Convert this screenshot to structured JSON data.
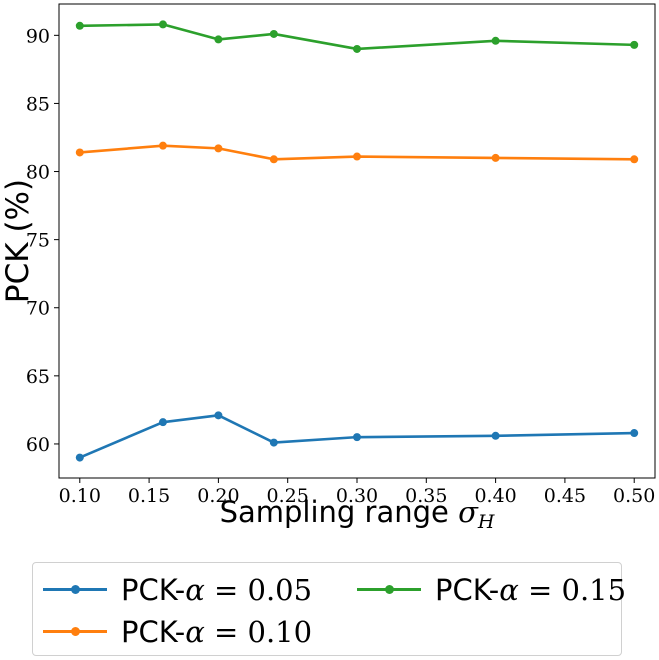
{
  "chart_data": {
    "type": "line",
    "xlabel": "Sampling range",
    "xlabel_symbol": "σ",
    "xlabel_subscript": "H",
    "ylabel": "PCK (%)",
    "xlim": [
      0.085,
      0.515
    ],
    "ylim": [
      57.5,
      92.3
    ],
    "xticks": [
      "0.10",
      "0.15",
      "0.20",
      "0.25",
      "0.30",
      "0.35",
      "0.40",
      "0.45",
      "0.50"
    ],
    "yticks": [
      "60",
      "65",
      "70",
      "75",
      "80",
      "85",
      "90"
    ],
    "x": [
      0.1,
      0.16,
      0.2,
      0.24,
      0.3,
      0.4,
      0.5
    ],
    "grid": false,
    "legend_position": "bottom",
    "series": [
      {
        "name": "PCK-α = 0.05",
        "label_prefix": "PCK-",
        "label_symbol": "α",
        "label_eq": " = 0.05",
        "color": "#1f77b4",
        "values": [
          59.0,
          61.6,
          62.1,
          60.1,
          60.5,
          60.6,
          60.8
        ]
      },
      {
        "name": "PCK-α = 0.10",
        "label_prefix": "PCK-",
        "label_symbol": "α",
        "label_eq": " = 0.10",
        "color": "#ff7f0e",
        "values": [
          81.4,
          81.9,
          81.7,
          80.9,
          81.1,
          81.0,
          80.9
        ]
      },
      {
        "name": "PCK-α = 0.15",
        "label_prefix": "PCK-",
        "label_symbol": "α",
        "label_eq": " = 0.15",
        "color": "#2ca02c",
        "values": [
          90.7,
          90.8,
          89.7,
          90.1,
          89.0,
          89.6,
          89.3
        ]
      }
    ]
  }
}
